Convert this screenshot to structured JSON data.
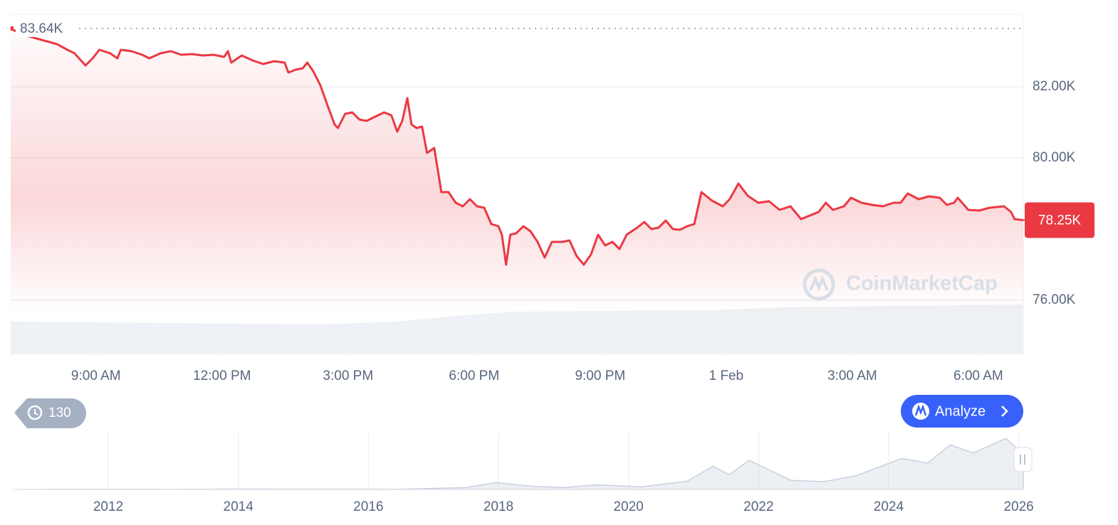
{
  "chart_data": [
    {
      "type": "line",
      "x": [
        6.97,
        7.22,
        7.64,
        8.07,
        8.32,
        8.49,
        8.75,
        8.92,
        9.08,
        9.34,
        9.51,
        9.59,
        9.85,
        10.1,
        10.27,
        10.53,
        10.78,
        11.03,
        11.29,
        11.54,
        11.8,
        12.05,
        12.14,
        12.22,
        12.47,
        12.73,
        12.98,
        13.24,
        13.49,
        13.58,
        13.75,
        13.92,
        14.03,
        14.17,
        14.34,
        14.51,
        14.68,
        14.76,
        14.93,
        15.1,
        15.27,
        15.44,
        15.61,
        15.86,
        16.03,
        16.17,
        16.29,
        16.41,
        16.51,
        16.63,
        16.76,
        16.88,
        17.05,
        17.22,
        17.39,
        17.56,
        17.73,
        17.9,
        18.07,
        18.24,
        18.41,
        18.58,
        18.66,
        18.76,
        18.86,
        19.0,
        19.17,
        19.34,
        19.51,
        19.68,
        19.85,
        20.1,
        20.27,
        20.44,
        20.61,
        20.78,
        20.95,
        21.12,
        21.29,
        21.46,
        21.63,
        21.88,
        22.05,
        22.22,
        22.39,
        22.56,
        22.73,
        22.9,
        23.07,
        23.24,
        23.41,
        23.66,
        23.92,
        24.08,
        24.29,
        24.51,
        24.76,
        25.02,
        25.27,
        25.53,
        25.78,
        26.03,
        26.2,
        26.37,
        26.54,
        26.8,
        26.97,
        27.22,
        27.47,
        27.73,
        27.98,
        28.15,
        28.32,
        28.58,
        28.83,
        29.08,
        29.25,
        29.42,
        29.51,
        29.76,
        30.02,
        30.27,
        30.61,
        30.78,
        30.86,
        31.07
      ],
      "series": [
        {
          "color": "#ea3943",
          "values": [
            83640,
            83480,
            83340,
            83200,
            83040,
            82940,
            82600,
            82800,
            83040,
            82940,
            82800,
            83040,
            83000,
            82900,
            82800,
            82940,
            83000,
            82900,
            82920,
            82880,
            82900,
            82840,
            83000,
            82680,
            82880,
            82740,
            82640,
            82720,
            82680,
            82400,
            82480,
            82520,
            82680,
            82440,
            82040,
            81480,
            80940,
            80840,
            81240,
            81280,
            81080,
            81040,
            81140,
            81280,
            81200,
            80740,
            81040,
            81680,
            80940,
            80840,
            80880,
            80140,
            80280,
            79040,
            79040,
            78740,
            78640,
            78840,
            78640,
            78600,
            78140,
            78080,
            77840,
            77000,
            77840,
            77880,
            78080,
            77940,
            77640,
            77200,
            77640,
            77640,
            77680,
            77240,
            77000,
            77280,
            77840,
            77540,
            77640,
            77440,
            77840,
            78040,
            78200,
            78000,
            78040,
            78240,
            78000,
            77980,
            78080,
            78140,
            79040,
            78800,
            78640,
            78840,
            79280,
            78940,
            78740,
            78780,
            78540,
            78640,
            78280,
            78400,
            78480,
            78740,
            78540,
            78640,
            78880,
            78740,
            78680,
            78640,
            78740,
            78740,
            79000,
            78840,
            78920,
            78880,
            78680,
            78740,
            78880,
            78540,
            78520,
            78600,
            78640,
            78480,
            78280,
            78250
          ]
        }
      ],
      "xlim": [
        6.97,
        31.07
      ],
      "xticks": [
        {
          "value": 9,
          "label": "9:00 AM"
        },
        {
          "value": 12,
          "label": "12:00 PM"
        },
        {
          "value": 15,
          "label": "3:00 PM"
        },
        {
          "value": 18,
          "label": "6:00 PM"
        },
        {
          "value": 21,
          "label": "9:00 PM"
        },
        {
          "value": 24,
          "label": "1 Feb"
        },
        {
          "value": 27,
          "label": "3:00 AM"
        },
        {
          "value": 30,
          "label": "6:00 AM"
        }
      ],
      "ylim": [
        74480,
        84040
      ],
      "yticks": [
        {
          "value": 76000,
          "label": "76.00K"
        },
        {
          "value": 80000,
          "label": "80.00K"
        },
        {
          "value": 82000,
          "label": "82.00K"
        }
      ],
      "grid": true,
      "annotations": [
        {
          "value": 83640,
          "label": "83.64K"
        },
        {
          "value": 78250,
          "label": "78.25K"
        }
      ]
    },
    {
      "type": "area",
      "x": [
        2010.6,
        2011.5,
        2013.0,
        2013.9,
        2016.5,
        2017.5,
        2017.96,
        2018.5,
        2019.0,
        2019.5,
        2020.2,
        2020.9,
        2021.3,
        2021.55,
        2021.85,
        2022.5,
        2023.0,
        2023.5,
        2024.2,
        2024.6,
        2024.95,
        2025.3,
        2025.8,
        2026.07
      ],
      "values": [
        0,
        500,
        200,
        1000,
        700,
        4000,
        15000,
        7000,
        4000,
        10000,
        6000,
        18000,
        51000,
        32000,
        64000,
        20000,
        17000,
        30000,
        68000,
        58000,
        98000,
        80000,
        112000,
        78000
      ],
      "color": "#c9d1de",
      "xlim": [
        2010.5,
        2026.07
      ],
      "ylim": [
        0,
        125000
      ],
      "xticks": [
        2012,
        2014,
        2016,
        2018,
        2020,
        2022,
        2024,
        2026
      ]
    }
  ],
  "ui": {
    "watermark": "CoinMarketCap",
    "history_count": 130,
    "analyze_button": "Analyze"
  }
}
